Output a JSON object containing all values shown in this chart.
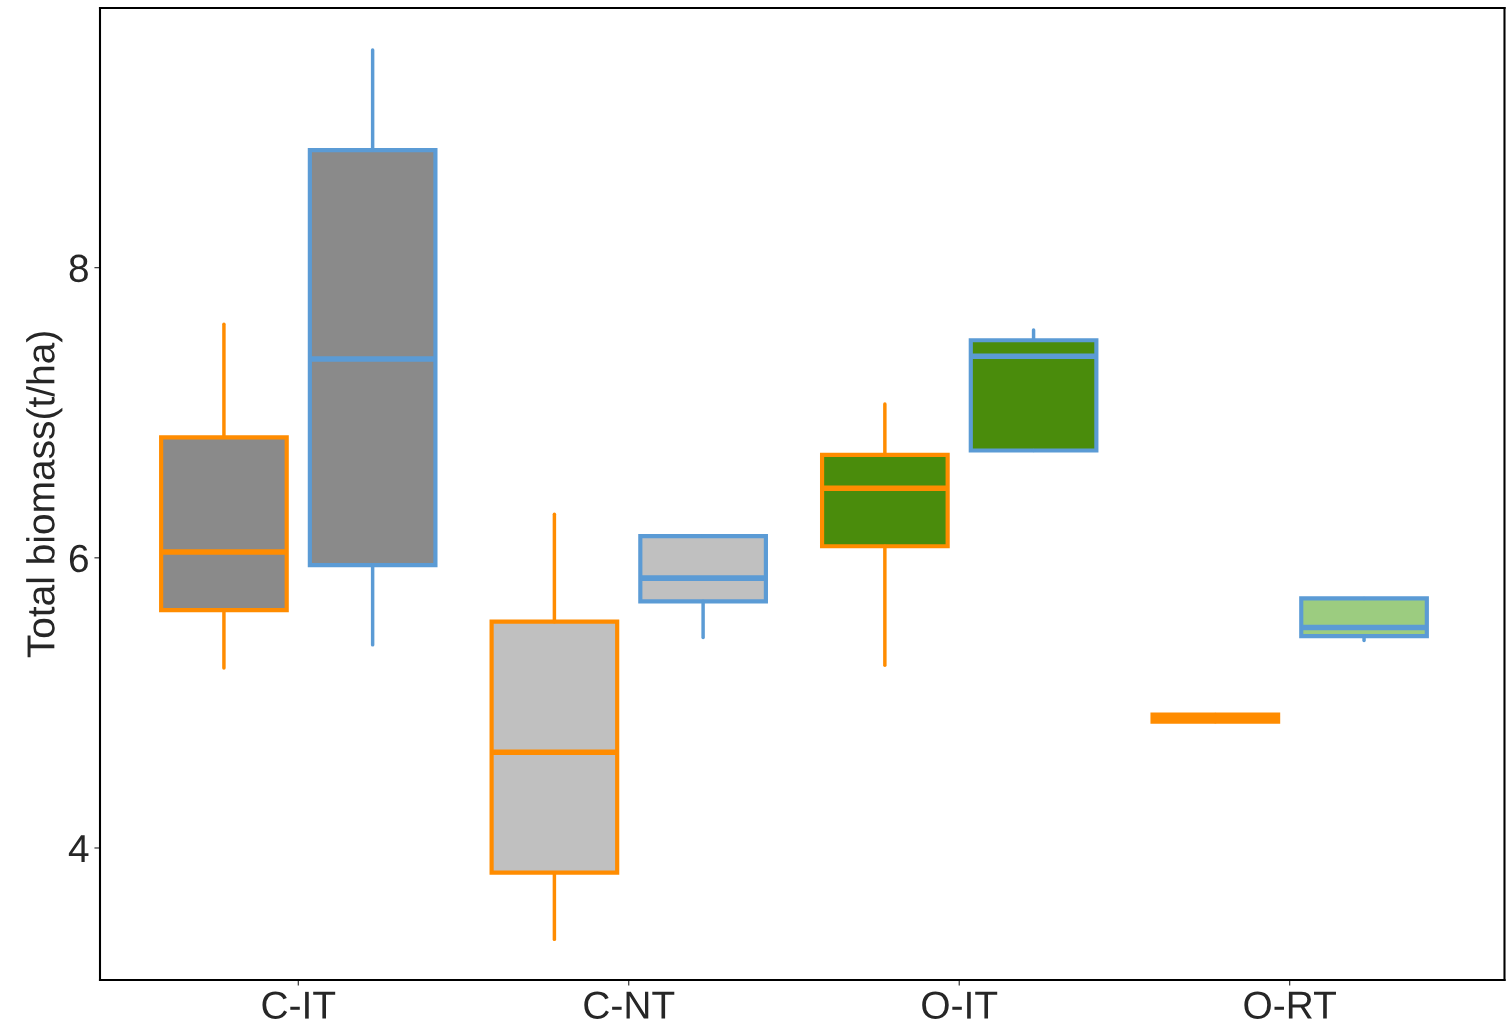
{
  "chart_data": {
    "type": "box",
    "ylabel": "Total biomass(t/ha)",
    "categories": [
      "C-IT",
      "C-NT",
      "O-IT",
      "O-RT"
    ],
    "ylim": [
      3.09,
      9.79
    ],
    "yticks": [
      4,
      6,
      8
    ],
    "grid": false,
    "legend": false,
    "series": [
      {
        "color": "#ff8c00",
        "colors": [
          "#8a8a8a",
          "#c0c0c0",
          "#4a8c0c",
          "#ff8c00"
        ],
        "boxes": [
          {
            "low": 5.24,
            "q1": 5.64,
            "median": 6.04,
            "q3": 6.83,
            "high": 7.61
          },
          {
            "low": 3.37,
            "q1": 3.83,
            "median": 4.66,
            "q3": 5.56,
            "high": 6.3
          },
          {
            "low": 5.26,
            "q1": 6.08,
            "median": 6.48,
            "q3": 6.71,
            "high": 7.06
          },
          {
            "low": 4.87,
            "q1": 4.87,
            "median": 4.89,
            "q3": 4.92,
            "high": 4.92
          }
        ]
      },
      {
        "color": "#5b9bd5",
        "colors": [
          "#8a8a8a",
          "#c0c0c0",
          "#4a8c0c",
          "#9ccc80"
        ],
        "boxes": [
          {
            "low": 5.4,
            "q1": 5.95,
            "median": 7.37,
            "q3": 8.81,
            "high": 9.5
          },
          {
            "low": 5.45,
            "q1": 5.7,
            "median": 5.86,
            "q3": 6.15,
            "high": 6.15
          },
          {
            "low": 6.74,
            "q1": 6.74,
            "median": 7.39,
            "q3": 7.5,
            "high": 7.57
          },
          {
            "low": 5.43,
            "q1": 5.46,
            "median": 5.52,
            "q3": 5.72,
            "high": 5.72
          }
        ]
      }
    ]
  }
}
